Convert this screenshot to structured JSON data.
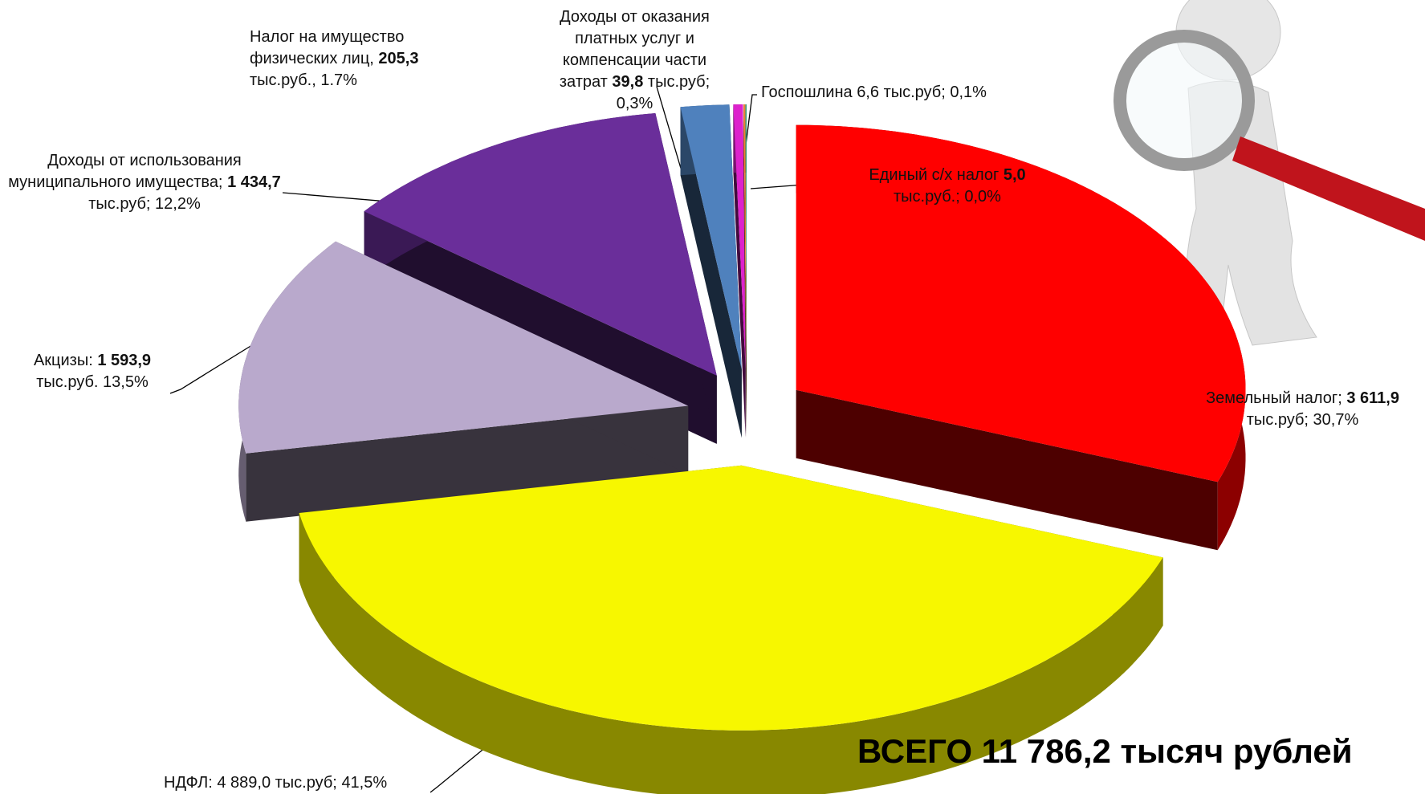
{
  "chart_data": {
    "type": "pie3d",
    "title": "ВСЕГО 11 786,2 тысяч рублей",
    "categories": [
      "Земельный налог;",
      "НДФЛ:",
      "Акцизы:",
      "Доходы от использования муниципального имущества;",
      "Налог на имущество физических лиц,",
      "Доходы от оказания платных услуг и компенсации части затрат",
      "Госпошлина",
      "Единый с/х налог"
    ],
    "values": [
      3611.9,
      4889.0,
      1593.9,
      1434.7,
      205.3,
      39.8,
      6.6,
      5.0
    ],
    "value_labels": [
      "3 611,9",
      "4 889,0",
      "1 593,9",
      "1 434,7",
      "205,3",
      "39,8",
      "6,6",
      "5,0"
    ],
    "units": [
      "тыс.руб;",
      "тыс.руб;",
      "тыс.руб.",
      "тыс.руб;",
      "тыс.руб.,",
      "тыс.руб;",
      "тыс.руб;",
      "тыс.руб.;"
    ],
    "percent_labels": [
      "30,7%",
      "41,5%",
      "13,5%",
      "12,2%",
      "1.7%",
      "0,3%",
      "0,1%",
      "0,0%"
    ],
    "colors": [
      "#ff0000",
      "#f7f700",
      "#b9a9cc",
      "#6a2e9a",
      "#4f81bd",
      "#dd22cc",
      "#f08030",
      "#3aa07a"
    ]
  }
}
